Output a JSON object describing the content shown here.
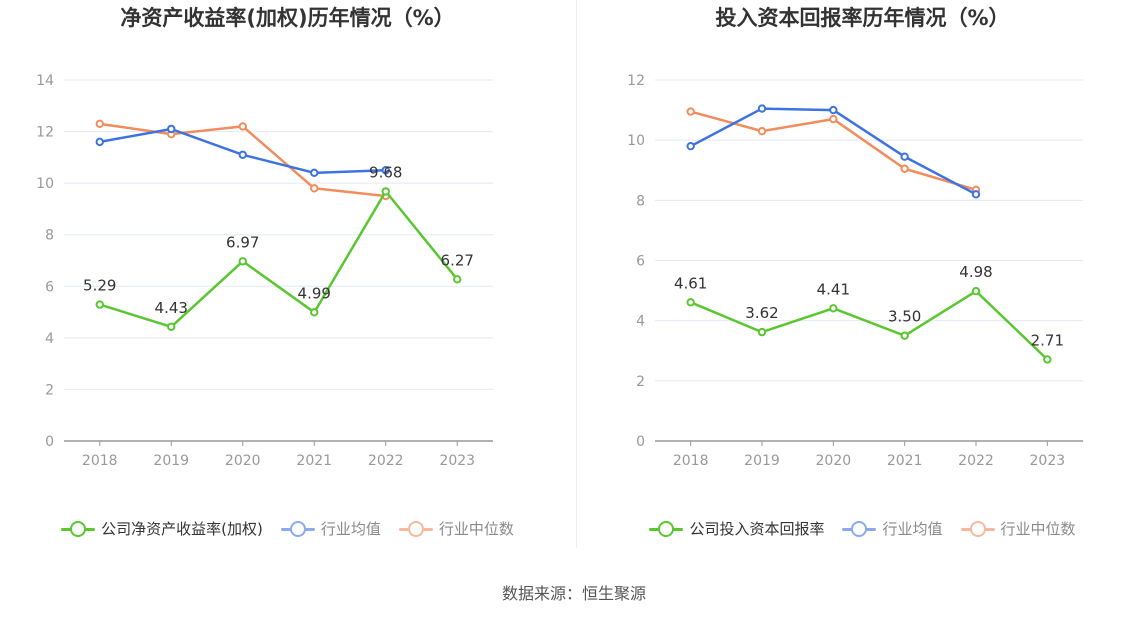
{
  "source_text": "数据来源：恒生聚源",
  "colors": {
    "company": "#5ac630",
    "industry_avg": "#3d72e1",
    "industry_median": "#f08c5d",
    "axis_text": "#999999",
    "grid": "#e4e8f5",
    "label_text": "#333333"
  },
  "chart_data": [
    {
      "type": "line",
      "title": "净资产收益率(加权)历年情况（%）",
      "categories": [
        "2018",
        "2019",
        "2020",
        "2021",
        "2022",
        "2023"
      ],
      "ylim": [
        0,
        14
      ],
      "yticks": [
        0,
        2,
        4,
        6,
        8,
        10,
        12,
        14
      ],
      "grid": true,
      "legend_position": "bottom",
      "series": [
        {
          "name": "公司净资产收益率(加权)",
          "key": "company",
          "values": [
            5.29,
            4.43,
            6.97,
            4.99,
            9.68,
            6.27
          ],
          "labels": [
            "5.29",
            "4.43",
            "6.97",
            "4.99",
            "9.68",
            "6.27"
          ]
        },
        {
          "name": "行业均值",
          "key": "industry_avg",
          "values": [
            11.6,
            12.1,
            11.1,
            10.4,
            10.5,
            null
          ]
        },
        {
          "name": "行业中位数",
          "key": "industry_median",
          "values": [
            12.3,
            11.9,
            12.2,
            9.8,
            9.5,
            null
          ]
        }
      ]
    },
    {
      "type": "line",
      "title": "投入资本回报率历年情况（%）",
      "categories": [
        "2018",
        "2019",
        "2020",
        "2021",
        "2022",
        "2023"
      ],
      "ylim": [
        0,
        12
      ],
      "yticks": [
        0,
        2,
        4,
        6,
        8,
        10,
        12
      ],
      "grid": true,
      "legend_position": "bottom",
      "series": [
        {
          "name": "公司投入资本回报率",
          "key": "company",
          "values": [
            4.61,
            3.62,
            4.41,
            3.5,
            4.98,
            2.71
          ],
          "labels": [
            "4.61",
            "3.62",
            "4.41",
            "3.50",
            "4.98",
            "2.71"
          ]
        },
        {
          "name": "行业均值",
          "key": "industry_avg",
          "values": [
            9.8,
            11.05,
            11.0,
            9.45,
            8.2,
            null
          ]
        },
        {
          "name": "行业中位数",
          "key": "industry_median",
          "values": [
            10.95,
            10.3,
            10.7,
            9.05,
            8.35,
            null
          ]
        }
      ]
    }
  ]
}
